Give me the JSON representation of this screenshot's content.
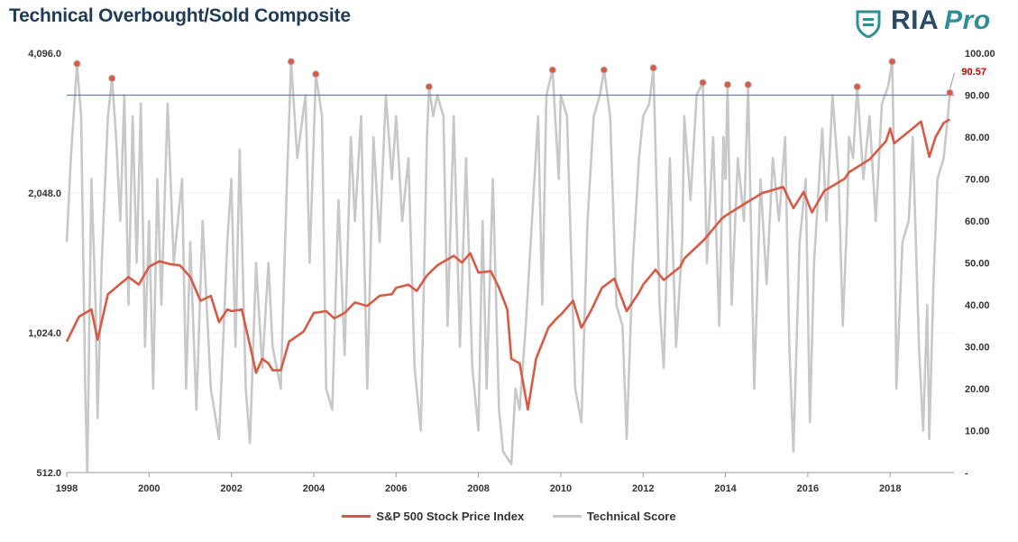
{
  "title": "Technical Overbought/Sold Composite",
  "logo": {
    "text": "RIA",
    "pro": "Pro"
  },
  "colors": {
    "sp500": "#d85a45",
    "score": "#c8c8c8",
    "threshold": "#5b86a6",
    "marker": "#d85a45",
    "annotation": "#cc0000"
  },
  "chart_data": {
    "type": "line",
    "x_ticks": [
      "1998",
      "2000",
      "2002",
      "2004",
      "2006",
      "2008",
      "2010",
      "2012",
      "2014",
      "2016",
      "2018"
    ],
    "y_left": {
      "scale": "log2",
      "ticks": [
        "4,096.0",
        "2,048.0",
        "1,024.0",
        "512.0"
      ],
      "values": [
        4096,
        2048,
        1024,
        512
      ]
    },
    "y_right": {
      "ticks": [
        "100.00",
        "90.00",
        "80.00",
        "70.00",
        "60.00",
        "50.00",
        "40.00",
        "30.00",
        "20.00",
        "10.00",
        "-"
      ],
      "values": [
        100,
        90,
        80,
        70,
        60,
        50,
        40,
        30,
        20,
        10,
        0
      ]
    },
    "threshold": 90,
    "current_value_label": "90.57",
    "series": [
      {
        "name": "S&P 500 Stock Price Index",
        "axis": "left",
        "points": [
          [
            1998.0,
            980
          ],
          [
            1998.3,
            1110
          ],
          [
            1998.6,
            1150
          ],
          [
            1998.75,
            990
          ],
          [
            1999.0,
            1240
          ],
          [
            1999.5,
            1350
          ],
          [
            1999.75,
            1300
          ],
          [
            2000.0,
            1420
          ],
          [
            2000.25,
            1460
          ],
          [
            2000.5,
            1440
          ],
          [
            2000.75,
            1430
          ],
          [
            2001.0,
            1350
          ],
          [
            2001.25,
            1200
          ],
          [
            2001.5,
            1230
          ],
          [
            2001.7,
            1080
          ],
          [
            2001.9,
            1150
          ],
          [
            2002.0,
            1140
          ],
          [
            2002.25,
            1150
          ],
          [
            2002.5,
            920
          ],
          [
            2002.6,
            840
          ],
          [
            2002.75,
            900
          ],
          [
            2002.9,
            880
          ],
          [
            2003.0,
            850
          ],
          [
            2003.2,
            850
          ],
          [
            2003.4,
            980
          ],
          [
            2003.75,
            1030
          ],
          [
            2004.0,
            1130
          ],
          [
            2004.3,
            1140
          ],
          [
            2004.5,
            1100
          ],
          [
            2004.75,
            1130
          ],
          [
            2005.0,
            1190
          ],
          [
            2005.3,
            1170
          ],
          [
            2005.6,
            1230
          ],
          [
            2005.9,
            1240
          ],
          [
            2006.0,
            1280
          ],
          [
            2006.3,
            1300
          ],
          [
            2006.5,
            1260
          ],
          [
            2006.75,
            1360
          ],
          [
            2007.0,
            1430
          ],
          [
            2007.4,
            1500
          ],
          [
            2007.6,
            1450
          ],
          [
            2007.8,
            1520
          ],
          [
            2008.0,
            1380
          ],
          [
            2008.3,
            1390
          ],
          [
            2008.5,
            1280
          ],
          [
            2008.7,
            1150
          ],
          [
            2008.8,
            900
          ],
          [
            2009.0,
            880
          ],
          [
            2009.2,
            700
          ],
          [
            2009.4,
            900
          ],
          [
            2009.7,
            1050
          ],
          [
            2009.9,
            1100
          ],
          [
            2010.0,
            1120
          ],
          [
            2010.3,
            1200
          ],
          [
            2010.5,
            1050
          ],
          [
            2010.75,
            1150
          ],
          [
            2011.0,
            1280
          ],
          [
            2011.3,
            1340
          ],
          [
            2011.6,
            1140
          ],
          [
            2011.9,
            1250
          ],
          [
            2012.0,
            1300
          ],
          [
            2012.3,
            1400
          ],
          [
            2012.5,
            1330
          ],
          [
            2012.9,
            1420
          ],
          [
            2013.0,
            1480
          ],
          [
            2013.5,
            1630
          ],
          [
            2013.9,
            1800
          ],
          [
            2014.0,
            1830
          ],
          [
            2014.5,
            1950
          ],
          [
            2014.9,
            2050
          ],
          [
            2015.0,
            2060
          ],
          [
            2015.4,
            2110
          ],
          [
            2015.65,
            1900
          ],
          [
            2015.9,
            2060
          ],
          [
            2016.1,
            1860
          ],
          [
            2016.4,
            2070
          ],
          [
            2016.9,
            2200
          ],
          [
            2017.0,
            2270
          ],
          [
            2017.5,
            2420
          ],
          [
            2017.9,
            2650
          ],
          [
            2018.0,
            2820
          ],
          [
            2018.1,
            2620
          ],
          [
            2018.5,
            2800
          ],
          [
            2018.75,
            2920
          ],
          [
            2018.95,
            2450
          ],
          [
            2019.1,
            2700
          ],
          [
            2019.3,
            2900
          ],
          [
            2019.45,
            2950
          ]
        ]
      },
      {
        "name": "Technical Score",
        "axis": "right",
        "points": [
          [
            1998.0,
            55
          ],
          [
            1998.1,
            75
          ],
          [
            1998.25,
            97.5
          ],
          [
            1998.35,
            85
          ],
          [
            1998.45,
            20
          ],
          [
            1998.5,
            0
          ],
          [
            1998.6,
            70
          ],
          [
            1998.7,
            40
          ],
          [
            1998.75,
            13
          ],
          [
            1998.85,
            50
          ],
          [
            1999.0,
            85
          ],
          [
            1999.1,
            94
          ],
          [
            1999.2,
            80
          ],
          [
            1999.3,
            60
          ],
          [
            1999.4,
            90
          ],
          [
            1999.5,
            40
          ],
          [
            1999.6,
            85
          ],
          [
            1999.7,
            50
          ],
          [
            1999.8,
            88
          ],
          [
            1999.9,
            30
          ],
          [
            2000.0,
            60
          ],
          [
            2000.1,
            20
          ],
          [
            2000.2,
            70
          ],
          [
            2000.3,
            40
          ],
          [
            2000.45,
            88
          ],
          [
            2000.6,
            50
          ],
          [
            2000.8,
            70
          ],
          [
            2000.9,
            20
          ],
          [
            2001.0,
            55
          ],
          [
            2001.15,
            15
          ],
          [
            2001.3,
            60
          ],
          [
            2001.5,
            20
          ],
          [
            2001.7,
            8
          ],
          [
            2001.9,
            55
          ],
          [
            2002.0,
            70
          ],
          [
            2002.1,
            30
          ],
          [
            2002.2,
            77
          ],
          [
            2002.35,
            20
          ],
          [
            2002.45,
            7
          ],
          [
            2002.6,
            50
          ],
          [
            2002.75,
            25
          ],
          [
            2002.9,
            50
          ],
          [
            2003.0,
            30
          ],
          [
            2003.2,
            20
          ],
          [
            2003.35,
            70
          ],
          [
            2003.45,
            98
          ],
          [
            2003.6,
            75
          ],
          [
            2003.8,
            90
          ],
          [
            2003.9,
            50
          ],
          [
            2004.0,
            80
          ],
          [
            2004.05,
            95
          ],
          [
            2004.2,
            85
          ],
          [
            2004.3,
            20
          ],
          [
            2004.45,
            15
          ],
          [
            2004.6,
            65
          ],
          [
            2004.75,
            28
          ],
          [
            2004.9,
            80
          ],
          [
            2005.0,
            60
          ],
          [
            2005.15,
            85
          ],
          [
            2005.3,
            20
          ],
          [
            2005.45,
            80
          ],
          [
            2005.6,
            55
          ],
          [
            2005.75,
            90
          ],
          [
            2005.9,
            70
          ],
          [
            2006.0,
            85
          ],
          [
            2006.15,
            60
          ],
          [
            2006.3,
            75
          ],
          [
            2006.45,
            25
          ],
          [
            2006.6,
            10
          ],
          [
            2006.75,
            80
          ],
          [
            2006.8,
            92
          ],
          [
            2006.9,
            85
          ],
          [
            2007.0,
            90
          ],
          [
            2007.15,
            85
          ],
          [
            2007.25,
            35
          ],
          [
            2007.4,
            85
          ],
          [
            2007.55,
            30
          ],
          [
            2007.7,
            75
          ],
          [
            2007.85,
            25
          ],
          [
            2008.0,
            10
          ],
          [
            2008.1,
            60
          ],
          [
            2008.2,
            20
          ],
          [
            2008.35,
            70
          ],
          [
            2008.5,
            15
          ],
          [
            2008.6,
            5
          ],
          [
            2008.8,
            2
          ],
          [
            2008.9,
            20
          ],
          [
            2009.0,
            15
          ],
          [
            2009.15,
            35
          ],
          [
            2009.3,
            60
          ],
          [
            2009.45,
            85
          ],
          [
            2009.55,
            40
          ],
          [
            2009.65,
            90
          ],
          [
            2009.8,
            96
          ],
          [
            2009.95,
            70
          ],
          [
            2010.0,
            90
          ],
          [
            2010.15,
            85
          ],
          [
            2010.35,
            20
          ],
          [
            2010.5,
            12
          ],
          [
            2010.65,
            60
          ],
          [
            2010.8,
            85
          ],
          [
            2010.95,
            90
          ],
          [
            2011.05,
            96
          ],
          [
            2011.2,
            85
          ],
          [
            2011.35,
            40
          ],
          [
            2011.5,
            35
          ],
          [
            2011.6,
            8
          ],
          [
            2011.75,
            50
          ],
          [
            2011.9,
            75
          ],
          [
            2012.0,
            85
          ],
          [
            2012.15,
            88
          ],
          [
            2012.25,
            96.5
          ],
          [
            2012.4,
            40
          ],
          [
            2012.5,
            25
          ],
          [
            2012.65,
            75
          ],
          [
            2012.8,
            30
          ],
          [
            2012.95,
            55
          ],
          [
            2013.0,
            85
          ],
          [
            2013.15,
            65
          ],
          [
            2013.3,
            90
          ],
          [
            2013.45,
            93
          ],
          [
            2013.55,
            50
          ],
          [
            2013.7,
            80
          ],
          [
            2013.85,
            35
          ],
          [
            2013.95,
            80
          ],
          [
            2014.0,
            70
          ],
          [
            2014.05,
            92.5
          ],
          [
            2014.15,
            40
          ],
          [
            2014.3,
            75
          ],
          [
            2014.45,
            60
          ],
          [
            2014.55,
            92.5
          ],
          [
            2014.7,
            20
          ],
          [
            2014.85,
            70
          ],
          [
            2015.0,
            45
          ],
          [
            2015.15,
            75
          ],
          [
            2015.3,
            60
          ],
          [
            2015.45,
            80
          ],
          [
            2015.55,
            30
          ],
          [
            2015.65,
            5
          ],
          [
            2015.8,
            55
          ],
          [
            2015.95,
            70
          ],
          [
            2016.05,
            12
          ],
          [
            2016.15,
            50
          ],
          [
            2016.35,
            82
          ],
          [
            2016.45,
            60
          ],
          [
            2016.6,
            90
          ],
          [
            2016.75,
            70
          ],
          [
            2016.85,
            35
          ],
          [
            2016.95,
            60
          ],
          [
            2017.0,
            80
          ],
          [
            2017.1,
            75
          ],
          [
            2017.2,
            92
          ],
          [
            2017.35,
            70
          ],
          [
            2017.5,
            85
          ],
          [
            2017.65,
            60
          ],
          [
            2017.8,
            88
          ],
          [
            2017.95,
            92
          ],
          [
            2018.05,
            98
          ],
          [
            2018.1,
            70
          ],
          [
            2018.15,
            20
          ],
          [
            2018.3,
            55
          ],
          [
            2018.45,
            60
          ],
          [
            2018.55,
            80
          ],
          [
            2018.7,
            30
          ],
          [
            2018.8,
            10
          ],
          [
            2018.9,
            40
          ],
          [
            2018.95,
            8
          ],
          [
            2019.05,
            45
          ],
          [
            2019.15,
            70
          ],
          [
            2019.3,
            75
          ],
          [
            2019.4,
            85
          ],
          [
            2019.45,
            90.57
          ]
        ]
      }
    ],
    "overbought_markers": [
      [
        1998.25,
        97.5
      ],
      [
        1999.1,
        94
      ],
      [
        2003.45,
        98
      ],
      [
        2004.05,
        95
      ],
      [
        2006.8,
        92
      ],
      [
        2009.8,
        96
      ],
      [
        2011.05,
        96
      ],
      [
        2012.25,
        96.5
      ],
      [
        2013.45,
        93
      ],
      [
        2014.05,
        92.5
      ],
      [
        2014.55,
        92.5
      ],
      [
        2017.2,
        92
      ],
      [
        2018.05,
        98
      ],
      [
        2019.45,
        90.57
      ]
    ]
  },
  "legend": {
    "sp500": "S&P 500 Stock Price Index",
    "score": "Technical Score"
  }
}
